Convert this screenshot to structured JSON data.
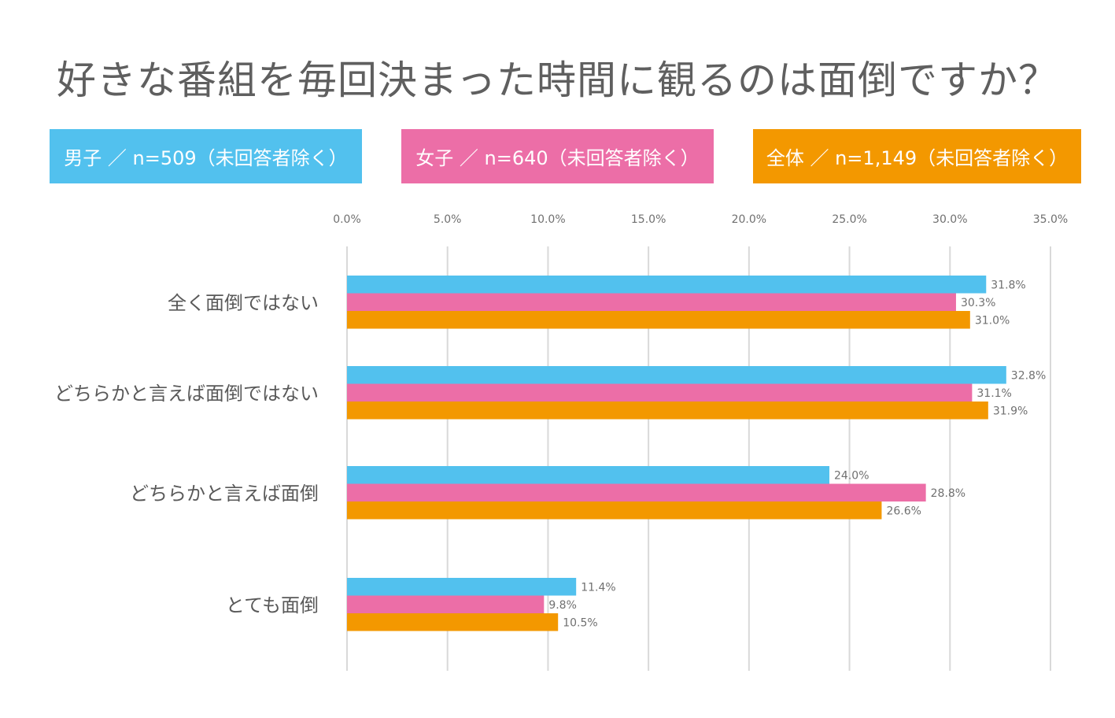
{
  "title": "好きな番組を毎回決まった時間に観るのは面倒ですか？",
  "legend": [
    {
      "label": "男子 ／ n=509（未回答者除く）",
      "color": "#52c1ee"
    },
    {
      "label": "女子 ／ n=640（未回答者除く）",
      "color": "#ec6ea7"
    },
    {
      "label": "全体 ／ n=1,149（未回答者除く）",
      "color": "#f39800"
    }
  ],
  "chart_data": {
    "type": "bar",
    "orientation": "horizontal",
    "title": "好きな番組を毎回決まった時間に観るのは面倒ですか？",
    "categories": [
      "全く面倒ではない",
      "どちらかと言えば面倒ではない",
      "どちらかと言えば面倒",
      "とても面倒"
    ],
    "series": [
      {
        "name": "男子 ／ n=509（未回答者除く）",
        "color": "#52c1ee",
        "values": [
          31.8,
          32.8,
          24.0,
          11.4
        ],
        "labels": [
          "31.8%",
          "32.8%",
          "24.0%",
          "11.4%"
        ]
      },
      {
        "name": "女子 ／ n=640（未回答者除く）",
        "color": "#ec6ea7",
        "values": [
          30.3,
          31.1,
          28.8,
          9.8
        ],
        "labels": [
          "30.3%",
          "31.1%",
          "28.8%",
          "9.8%"
        ]
      },
      {
        "name": "全体 ／ n=1,149（未回答者除く）",
        "color": "#f39800",
        "values": [
          31.0,
          31.9,
          26.6,
          10.5
        ],
        "labels": [
          "31.0%",
          "31.9%",
          "26.6%",
          "10.5%"
        ]
      }
    ],
    "xlim": [
      0,
      35
    ],
    "xticks": [
      0,
      5,
      10,
      15,
      20,
      25,
      30,
      35
    ],
    "xtick_labels": [
      "0.0%",
      "5.0%",
      "10.0%",
      "15.0%",
      "20.0%",
      "25.0%",
      "30.0%",
      "35.0%"
    ],
    "axis_position": "top",
    "grid": true,
    "legend_position": "top",
    "grid_color": "#d9d9d9"
  }
}
